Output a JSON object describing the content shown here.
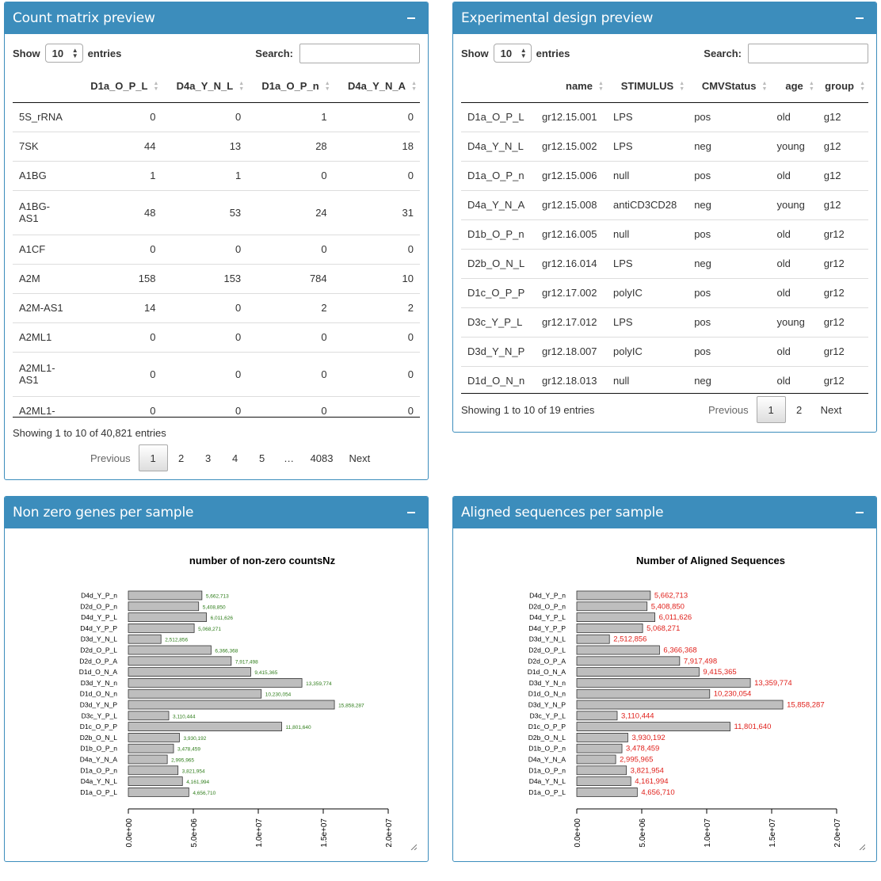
{
  "count_box": {
    "title": "Count matrix preview",
    "show_label": "Show",
    "entries_value": "10",
    "entries_label": "entries",
    "search_label": "Search:",
    "columns": [
      "",
      "D1a_O_P_L",
      "D4a_Y_N_L",
      "D1a_O_P_n",
      "D4a_Y_N_A"
    ],
    "rows": [
      {
        "gene": "5S_rRNA",
        "values": [
          "0",
          "0",
          "1",
          "0"
        ]
      },
      {
        "gene": "7SK",
        "values": [
          "44",
          "13",
          "28",
          "18"
        ]
      },
      {
        "gene": "A1BG",
        "values": [
          "1",
          "1",
          "0",
          "0"
        ]
      },
      {
        "gene": "A1BG-\nAS1",
        "values": [
          "48",
          "53",
          "24",
          "31"
        ]
      },
      {
        "gene": "A1CF",
        "values": [
          "0",
          "0",
          "0",
          "0"
        ]
      },
      {
        "gene": "A2M",
        "values": [
          "158",
          "153",
          "784",
          "10"
        ]
      },
      {
        "gene": "A2M-AS1",
        "values": [
          "14",
          "0",
          "2",
          "2"
        ]
      },
      {
        "gene": "A2ML1",
        "values": [
          "0",
          "0",
          "0",
          "0"
        ]
      },
      {
        "gene": "A2ML1-\nAS1",
        "values": [
          "0",
          "0",
          "0",
          "0"
        ]
      },
      {
        "gene": "A2ML1-",
        "values": [
          "0",
          "0",
          "0",
          "0"
        ]
      }
    ],
    "info": "Showing 1 to 10 of 40,821 entries",
    "pager": [
      "Previous",
      "1",
      "2",
      "3",
      "4",
      "5",
      "…",
      "4083",
      "Next"
    ]
  },
  "design_box": {
    "title": "Experimental design preview",
    "show_label": "Show",
    "entries_value": "10",
    "entries_label": "entries",
    "search_label": "Search:",
    "columns": [
      "",
      "name",
      "STIMULUS",
      "CMVStatus",
      "age",
      "group"
    ],
    "rows": [
      [
        "D1a_O_P_L",
        "gr12.15.001",
        "LPS",
        "pos",
        "old",
        "g12"
      ],
      [
        "D4a_Y_N_L",
        "gr12.15.002",
        "LPS",
        "neg",
        "young",
        "g12"
      ],
      [
        "D1a_O_P_n",
        "gr12.15.006",
        "null",
        "pos",
        "old",
        "g12"
      ],
      [
        "D4a_Y_N_A",
        "gr12.15.008",
        "antiCD3CD28",
        "neg",
        "young",
        "g12"
      ],
      [
        "D1b_O_P_n",
        "gr12.16.005",
        "null",
        "pos",
        "old",
        "gr12"
      ],
      [
        "D2b_O_N_L",
        "gr12.16.014",
        "LPS",
        "neg",
        "old",
        "gr12"
      ],
      [
        "D1c_O_P_P",
        "gr12.17.002",
        "polyIC",
        "pos",
        "old",
        "gr12"
      ],
      [
        "D3c_Y_P_L",
        "gr12.17.012",
        "LPS",
        "pos",
        "young",
        "gr12"
      ],
      [
        "D3d_Y_N_P",
        "gr12.18.007",
        "polyIC",
        "pos",
        "old",
        "gr12"
      ],
      [
        "D1d_O_N_n",
        "gr12.18.013",
        "null",
        "neg",
        "old",
        "gr12"
      ]
    ],
    "info": "Showing 1 to 10 of 19 entries",
    "pager": [
      "Previous",
      "1",
      "2",
      "Next"
    ]
  },
  "nonzero_box": {
    "title": "Non zero genes per sample"
  },
  "aligned_box": {
    "title": "Aligned sequences per sample"
  },
  "chart_data": [
    {
      "type": "bar",
      "orientation": "horizontal",
      "title": "number of non-zero countsNz",
      "categories": [
        "D4d_Y_P_n",
        "D2d_O_P_n",
        "D4d_Y_P_L",
        "D4d_Y_P_P",
        "D3d_Y_N_L",
        "D2d_O_P_L",
        "D2d_O_P_A",
        "D1d_O_N_A",
        "D3d_Y_N_n",
        "D1d_O_N_n",
        "D3d_Y_N_P",
        "D3c_Y_P_L",
        "D1c_O_P_P",
        "D2b_O_N_L",
        "D1b_O_P_n",
        "D4a_Y_N_A",
        "D1a_O_P_n",
        "D4a_Y_N_L",
        "D1a_O_P_L"
      ],
      "values": [
        5662713,
        5408850,
        6011626,
        5068271,
        2512856,
        6366368,
        7917498,
        9415365,
        13359774,
        10230054,
        15858287,
        3110444,
        11801640,
        3930192,
        3478459,
        2995965,
        3821954,
        4161994,
        4656710
      ],
      "value_labels": [
        "5,662,713",
        "5,408,850",
        "6,011,626",
        "5,068,271",
        "2,512,856",
        "6,366,368",
        "7,917,498",
        "9,415,365",
        "13,359,774",
        "10,230,054",
        "15,858,287",
        "3,110,444",
        "11,801,640",
        "3,930,192",
        "3,478,459",
        "2,995,965",
        "3,821,954",
        "4,161,994",
        "4,656,710"
      ],
      "xticks": [
        "0.0e+00",
        "5.0e+06",
        "1.0e+07",
        "1.5e+07",
        "2.0e+07"
      ],
      "xlim": [
        0,
        20000000
      ],
      "bar_color": "#bebebe",
      "label_color": "#2e7d1a"
    },
    {
      "type": "bar",
      "orientation": "horizontal",
      "title": "Number of Aligned Sequences",
      "categories": [
        "D4d_Y_P_n",
        "D2d_O_P_n",
        "D4d_Y_P_L",
        "D4d_Y_P_P",
        "D3d_Y_N_L",
        "D2d_O_P_L",
        "D2d_O_P_A",
        "D1d_O_N_A",
        "D3d_Y_N_n",
        "D1d_O_N_n",
        "D3d_Y_N_P",
        "D3c_Y_P_L",
        "D1c_O_P_P",
        "D2b_O_N_L",
        "D1b_O_P_n",
        "D4a_Y_N_A",
        "D1a_O_P_n",
        "D4a_Y_N_L",
        "D1a_O_P_L"
      ],
      "values": [
        5662713,
        5408850,
        6011626,
        5068271,
        2512856,
        6366368,
        7917498,
        9415365,
        13359774,
        10230054,
        15858287,
        3110444,
        11801640,
        3930192,
        3478459,
        2995965,
        3821954,
        4161994,
        4656710
      ],
      "value_labels": [
        "5,662,713",
        "5,408,850",
        "6,011,626",
        "5,068,271",
        "2,512,856",
        "6,366,368",
        "7,917,498",
        "9,415,365",
        "13,359,774",
        "10,230,054",
        "15,858,287",
        "3,110,444",
        "11,801,640",
        "3,930,192",
        "3,478,459",
        "2,995,965",
        "3,821,954",
        "4,161,994",
        "4,656,710"
      ],
      "xticks": [
        "0.0e+00",
        "5.0e+06",
        "1.0e+07",
        "1.5e+07",
        "2.0e+07"
      ],
      "xlim": [
        0,
        20000000
      ],
      "bar_color": "#bebebe",
      "label_color": "#e0201b"
    }
  ]
}
